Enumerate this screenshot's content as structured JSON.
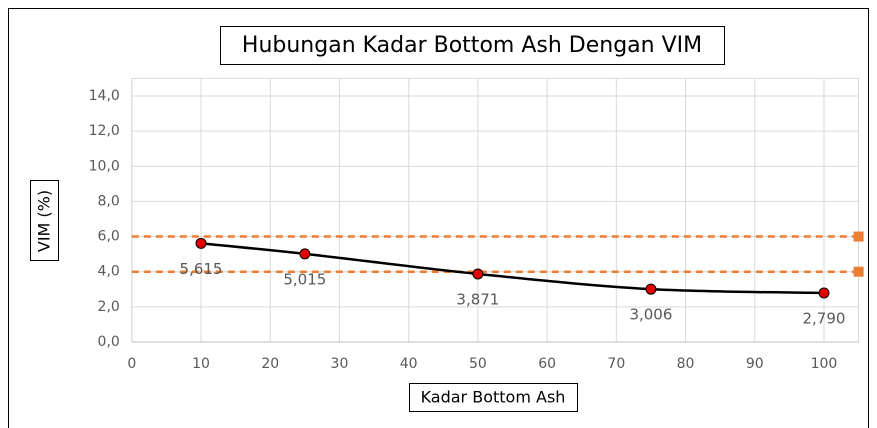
{
  "chart_data": {
    "type": "line",
    "title": "Hubungan Kadar Bottom Ash Dengan VIM",
    "x_label": "Kadar Bottom Ash",
    "y_label": "VIM (%)",
    "xlim": [
      0,
      105
    ],
    "xticks": [
      0,
      10,
      20,
      30,
      40,
      50,
      60,
      70,
      80,
      90,
      100
    ],
    "ylim": [
      0,
      15
    ],
    "yticks": [
      {
        "value": 0,
        "label": "0,0"
      },
      {
        "value": 2,
        "label": "2,0"
      },
      {
        "value": 4,
        "label": "4,0"
      },
      {
        "value": 6,
        "label": "6,0"
      },
      {
        "value": 8,
        "label": "8,0"
      },
      {
        "value": 10,
        "label": "10,0"
      },
      {
        "value": 12,
        "label": "12,0"
      },
      {
        "value": 14,
        "label": "14,0"
      }
    ],
    "grid": true,
    "series": [
      {
        "color": "#000000",
        "marker_color": "#e00000",
        "smooth": true,
        "x": [
          10,
          25,
          50,
          75,
          100
        ],
        "values": [
          5.615,
          5.015,
          3.871,
          3.006,
          2.79
        ],
        "value_labels": [
          "5,615",
          "5,015",
          "3,871",
          "3,006",
          "2,790"
        ]
      },
      {
        "color": "#ed7d31",
        "dashed": true,
        "end_marker": true,
        "x": [
          0,
          105
        ],
        "values": [
          6,
          6
        ]
      },
      {
        "color": "#ed7d31",
        "dashed": true,
        "end_marker": true,
        "x": [
          0,
          105
        ],
        "values": [
          4,
          4
        ]
      }
    ]
  }
}
